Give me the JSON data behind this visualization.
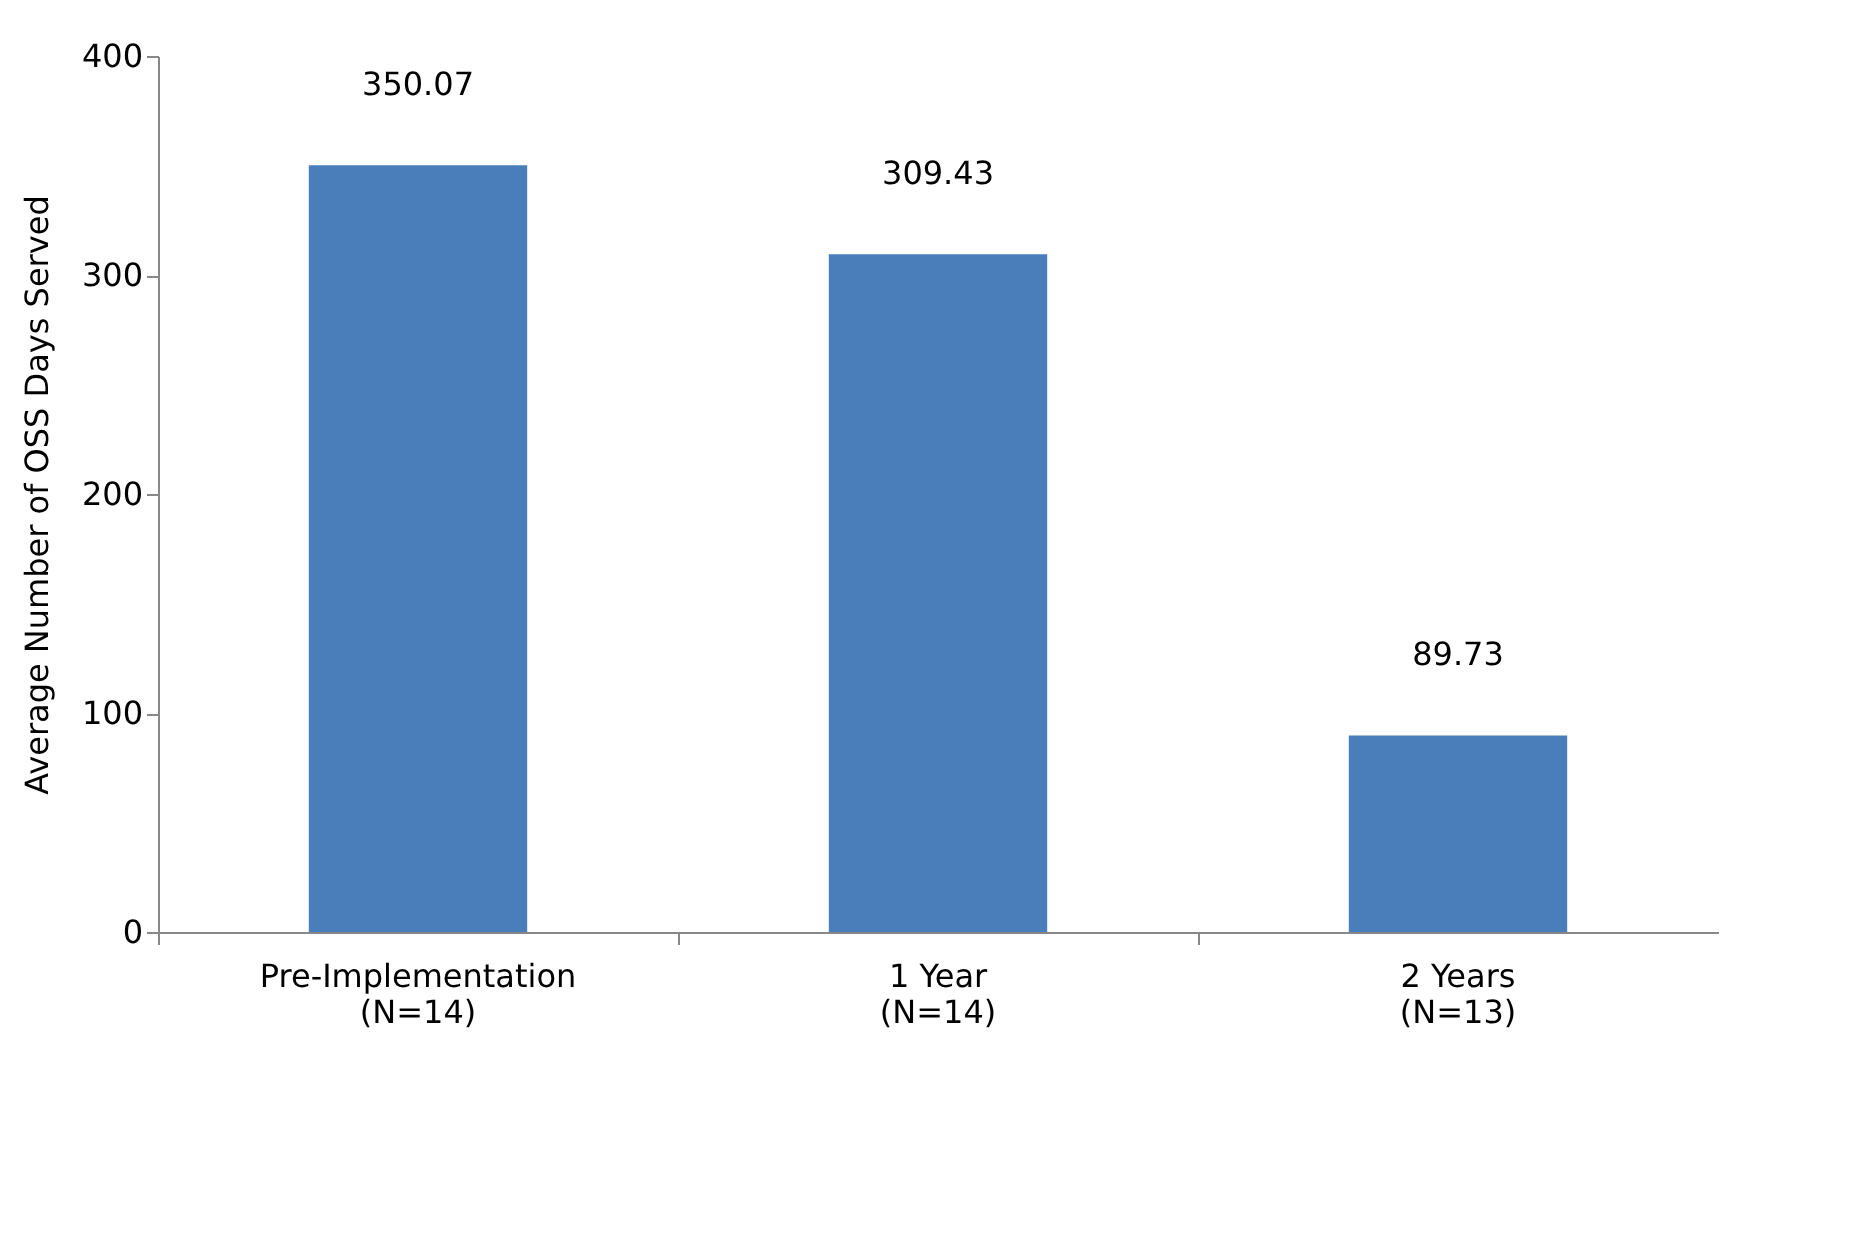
{
  "chart_data": {
    "type": "bar",
    "categories": [
      "Pre-Implementation\n(N=14)",
      "1 Year\n(N=14)",
      "2 Years\n(N=13)"
    ],
    "values": [
      350.07,
      309.43,
      89.73
    ],
    "color": "#4a7ebb",
    "ylabel": "Average Number of OSS Days Served",
    "ylim": [
      0,
      400
    ],
    "yticks": [
      0,
      100,
      200,
      300,
      400
    ],
    "data_labels": true,
    "grid": false
  }
}
